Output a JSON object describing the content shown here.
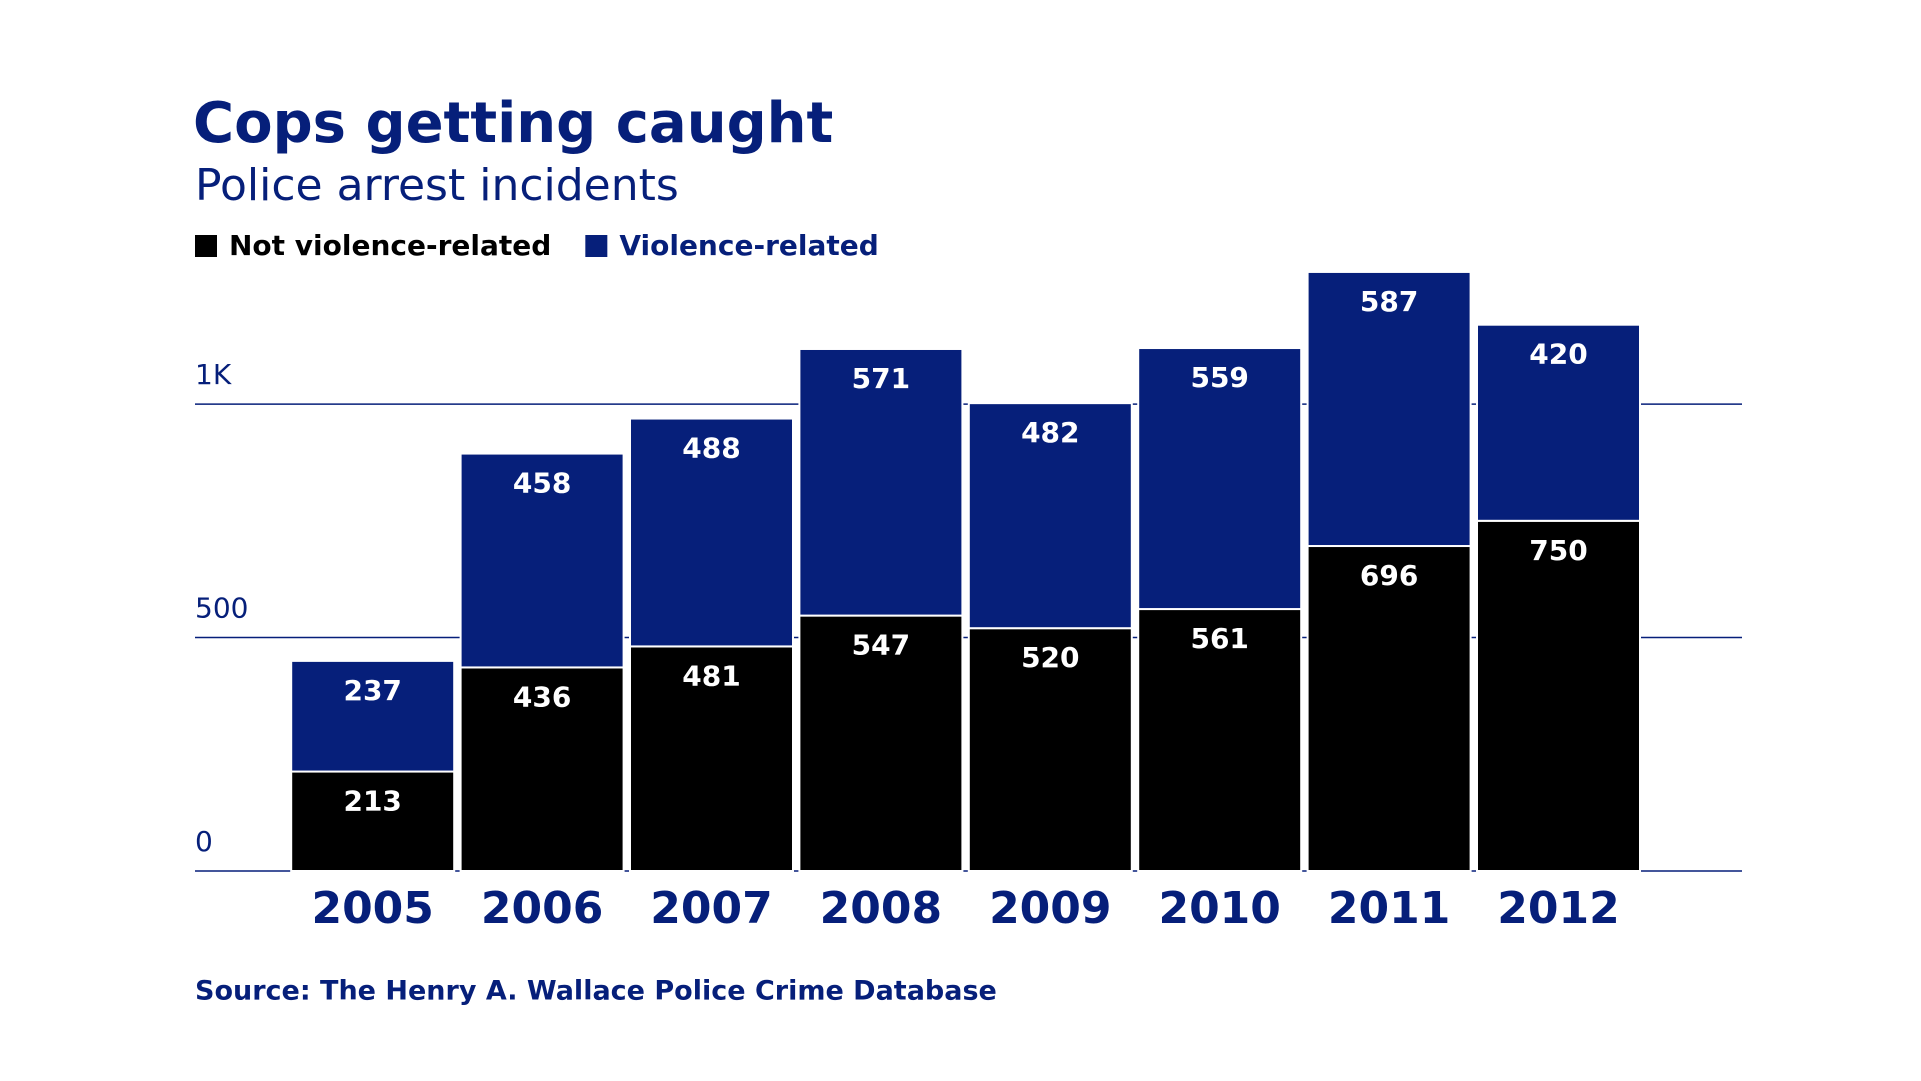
{
  "chart_data": {
    "type": "stacked_bar",
    "title": "Cops getting caught",
    "subtitle": "Police arrest incidents",
    "source": "Source: The Henry A. Wallace Police Crime Database",
    "categories": [
      "2005",
      "2006",
      "2007",
      "2008",
      "2009",
      "2010",
      "2011",
      "2012"
    ],
    "series": [
      {
        "name": "Not violence-related",
        "color": "#000000",
        "values": [
          213,
          436,
          481,
          547,
          520,
          561,
          696,
          750
        ]
      },
      {
        "name": "Violence-related",
        "color": "#061f7a",
        "values": [
          237,
          458,
          488,
          571,
          482,
          559,
          587,
          420
        ]
      }
    ],
    "ylim": [
      0,
      1300
    ],
    "yticks": [
      0,
      500,
      {
        "value": 1000,
        "label": "1K"
      }
    ],
    "grid": true,
    "legend": "top-left"
  }
}
